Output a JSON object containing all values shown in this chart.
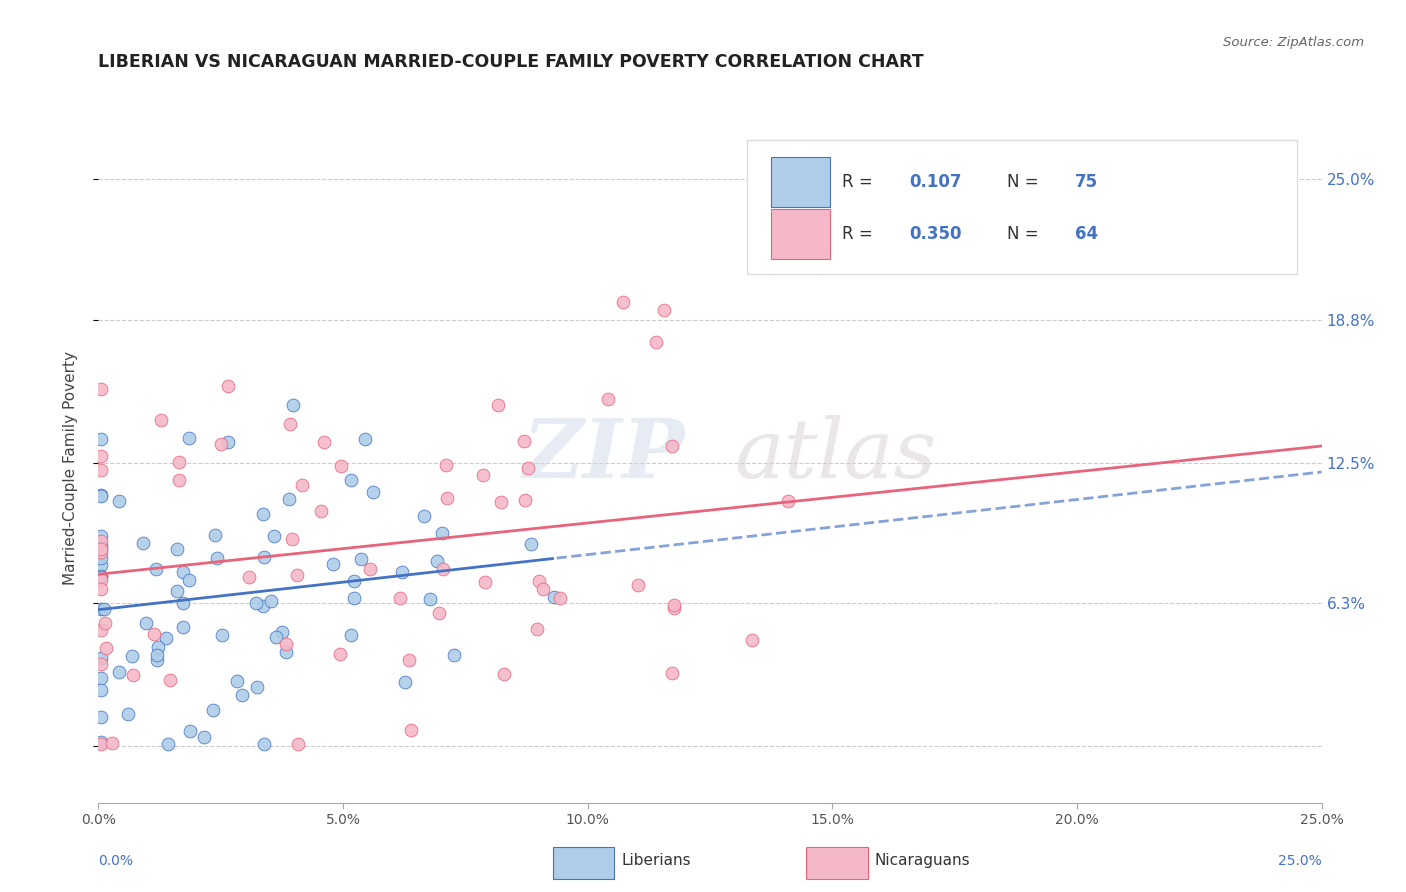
{
  "title": "LIBERIAN VS NICARAGUAN MARRIED-COUPLE FAMILY POVERTY CORRELATION CHART",
  "source": "Source: ZipAtlas.com",
  "ylabel": "Married-Couple Family Poverty",
  "xlim": [
    0.0,
    0.25
  ],
  "ylim": [
    -0.025,
    0.27
  ],
  "liberian_R": 0.107,
  "liberian_N": 75,
  "nicaraguan_R": 0.35,
  "nicaraguan_N": 64,
  "liberian_color": "#aecde8",
  "nicaraguan_color": "#f4b8c8",
  "liberian_line_color": "#4472c4",
  "nicaraguan_line_color": "#e8647a",
  "watermark_zip": "ZIP",
  "watermark_atlas": "atlas",
  "background_color": "#ffffff",
  "ytick_vals": [
    0.0,
    0.063,
    0.125,
    0.188,
    0.25
  ],
  "ytick_labels": [
    "",
    "6.3%",
    "12.5%",
    "18.8%",
    "25.0%"
  ],
  "xtick_vals": [
    0.0,
    0.05,
    0.1,
    0.15,
    0.2,
    0.25
  ],
  "xtick_labels": [
    "0.0%",
    "5.0%",
    "10.0%",
    "15.0%",
    "20.0%",
    "25.0%"
  ],
  "legend_x_labels": [
    "0.0%",
    "25.0%"
  ],
  "legend_items": [
    "Liberians",
    "Nicaraguans"
  ],
  "lib_seed": 42,
  "nic_seed": 137
}
